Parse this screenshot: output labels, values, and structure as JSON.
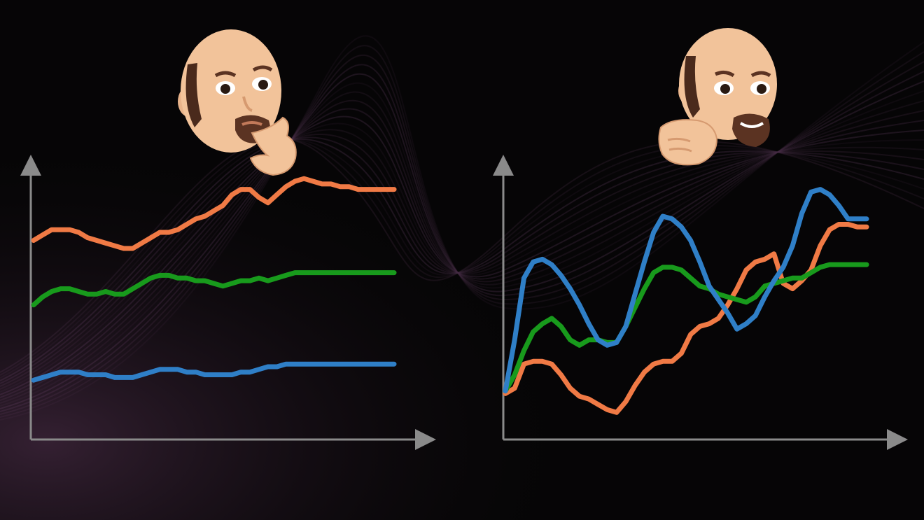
{
  "colors": {
    "background": "#060506",
    "axis": "#8a8a8a",
    "orange": "#f07a45",
    "green": "#189a1c",
    "blue": "#2f7fc7",
    "waves": "#7a4d78",
    "skin": "#f2c39a",
    "beard": "#5b3322"
  },
  "icons": {
    "left_avatar": "thinking-face-avatar-icon",
    "right_avatar": "pointing-face-avatar-icon"
  },
  "chart_data": [
    {
      "type": "line",
      "xlim": [
        0,
        42
      ],
      "ylim": [
        0,
        100
      ],
      "x": [
        0,
        1,
        2,
        3,
        4,
        5,
        6,
        7,
        8,
        9,
        10,
        11,
        12,
        13,
        14,
        15,
        16,
        17,
        18,
        19,
        20,
        21,
        22,
        23,
        24,
        25,
        26,
        27,
        28,
        29,
        30,
        31,
        32,
        33,
        34,
        35,
        36,
        37,
        38,
        39,
        40
      ],
      "series": [
        {
          "color": "#f07a45",
          "values": [
            72,
            74,
            76,
            76,
            76,
            75,
            73,
            72,
            71,
            70,
            69,
            69,
            71,
            73,
            75,
            75,
            76,
            78,
            80,
            81,
            83,
            85,
            89,
            91,
            91,
            88,
            86,
            89,
            92,
            94,
            95,
            94,
            93,
            93,
            92,
            92,
            91,
            91,
            91,
            91,
            91
          ]
        },
        {
          "color": "#189a1c",
          "values": [
            48,
            51,
            53,
            54,
            54,
            53,
            52,
            52,
            53,
            52,
            52,
            54,
            56,
            58,
            59,
            59,
            58,
            58,
            57,
            57,
            56,
            55,
            56,
            57,
            57,
            58,
            57,
            58,
            59,
            60,
            60,
            60,
            60,
            60,
            60,
            60,
            60,
            60,
            60,
            60,
            60
          ]
        },
        {
          "color": "#2f7fc7",
          "values": [
            20,
            21,
            22,
            23,
            23,
            23,
            22,
            22,
            22,
            21,
            21,
            21,
            22,
            23,
            24,
            24,
            24,
            23,
            23,
            22,
            22,
            22,
            22,
            23,
            23,
            24,
            25,
            25,
            26,
            26,
            26,
            26,
            26,
            26,
            26,
            26,
            26,
            26,
            26,
            26,
            26
          ]
        }
      ]
    },
    {
      "type": "line",
      "xlim": [
        0,
        43
      ],
      "ylim": [
        0,
        100
      ],
      "x": [
        0,
        1,
        2,
        3,
        4,
        5,
        6,
        7,
        8,
        9,
        10,
        11,
        12,
        13,
        14,
        15,
        16,
        17,
        18,
        19,
        20,
        21,
        22,
        23,
        24,
        25,
        26,
        27,
        28,
        29,
        30,
        31,
        32,
        33,
        34,
        35,
        36,
        37,
        38,
        39
      ],
      "series": [
        {
          "color": "#f07a45",
          "values": [
            15,
            17,
            26,
            27,
            27,
            26,
            22,
            17,
            14,
            13,
            11,
            9,
            8,
            12,
            18,
            23,
            26,
            27,
            27,
            30,
            37,
            40,
            41,
            43,
            48,
            54,
            61,
            64,
            65,
            67,
            56,
            54,
            57,
            61,
            70,
            76,
            78,
            78,
            77,
            77
          ]
        },
        {
          "color": "#189a1c",
          "values": [
            16,
            22,
            31,
            38,
            41,
            43,
            40,
            35,
            33,
            35,
            35,
            34,
            34,
            40,
            47,
            54,
            60,
            62,
            62,
            61,
            58,
            55,
            54,
            52,
            51,
            50,
            49,
            51,
            55,
            56,
            57,
            58,
            58,
            60,
            62,
            63,
            63,
            63,
            63,
            63
          ]
        },
        {
          "color": "#2f7fc7",
          "values": [
            16,
            35,
            58,
            64,
            65,
            63,
            59,
            54,
            48,
            41,
            35,
            33,
            34,
            40,
            52,
            64,
            75,
            81,
            80,
            77,
            72,
            64,
            55,
            50,
            45,
            39,
            41,
            44,
            51,
            57,
            62,
            70,
            82,
            90,
            91,
            89,
            85,
            80,
            80,
            80
          ]
        }
      ]
    }
  ]
}
